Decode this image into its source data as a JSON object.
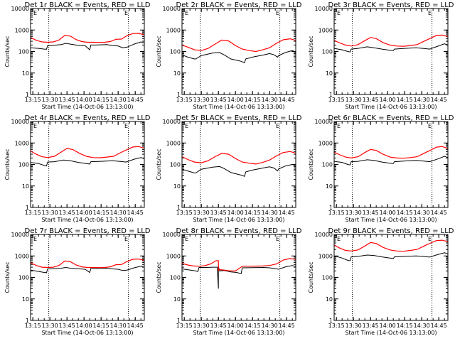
{
  "figure": {
    "x_tick_labels": [
      "13:15",
      "13:30",
      "13:45",
      "14:00",
      "14:15",
      "14:30",
      "14:45"
    ],
    "y_tick_labels": [
      "1",
      "10",
      "100",
      "1000",
      "10000"
    ],
    "ylabel": "Counts/sec",
    "xlabel": "Start Time (14-Oct-06 13:13:00)",
    "markers": [
      "E",
      "E"
    ],
    "colors": {
      "events": "#000000",
      "lld": "#ff0000"
    }
  },
  "chart_data": [
    {
      "type": "line",
      "title": "Det 1r BLACK = Events, RED = LLD",
      "xlabel": "Start Time (14-Oct-06 13:13:00)",
      "ylabel": "Counts/sec",
      "x_range": [
        "13:13",
        "14:53"
      ],
      "y_scale": "log",
      "ylim": [
        1,
        10000
      ],
      "vlines": [
        "13:29",
        "14:39"
      ],
      "series": [
        {
          "name": "Events",
          "x": [
            "13:13",
            "13:20",
            "13:25",
            "13:27",
            "13:28",
            "13:31",
            "13:40",
            "13:44",
            "13:48",
            "13:56",
            "14:01",
            "14:05",
            "14:06",
            "14:10",
            "14:20",
            "14:25",
            "14:30",
            "14:34",
            "14:38",
            "14:44",
            "14:50",
            "14:53"
          ],
          "y": [
            150,
            140,
            130,
            128,
            190,
            190,
            210,
            240,
            220,
            190,
            185,
            120,
            200,
            200,
            210,
            190,
            180,
            150,
            160,
            220,
            280,
            250
          ]
        },
        {
          "name": "LLD",
          "x": [
            "13:13",
            "13:18",
            "13:23",
            "13:28",
            "13:33",
            "13:38",
            "13:43",
            "13:48",
            "13:53",
            "13:58",
            "14:03",
            "14:08",
            "14:13",
            "14:18",
            "14:23",
            "14:28",
            "14:33",
            "14:38",
            "14:43",
            "14:48",
            "14:53"
          ],
          "y": [
            450,
            330,
            280,
            270,
            280,
            340,
            560,
            520,
            360,
            290,
            270,
            270,
            265,
            270,
            290,
            370,
            380,
            560,
            680,
            700,
            600
          ]
        }
      ]
    },
    {
      "type": "line",
      "title": "Det 2r BLACK = Events, RED = LLD",
      "xlabel": "Start Time (14-Oct-06 13:13:00)",
      "ylabel": "Counts/sec",
      "x_range": [
        "13:13",
        "14:53"
      ],
      "y_scale": "log",
      "ylim": [
        1,
        10000
      ],
      "vlines": [
        "13:29",
        "14:39"
      ],
      "series": [
        {
          "name": "Events",
          "x": [
            "13:13",
            "13:18",
            "13:24",
            "13:25",
            "13:30",
            "13:40",
            "13:46",
            "13:50",
            "13:56",
            "14:05",
            "14:08",
            "14:09",
            "14:15",
            "14:25",
            "14:30",
            "14:34",
            "14:37",
            "14:38",
            "14:44",
            "14:50",
            "14:53"
          ],
          "y": [
            70,
            55,
            45,
            45,
            65,
            85,
            90,
            70,
            45,
            35,
            30,
            45,
            55,
            70,
            80,
            70,
            55,
            65,
            90,
            110,
            95
          ]
        },
        {
          "name": "LLD",
          "x": [
            "13:13",
            "13:18",
            "13:24",
            "13:30",
            "13:36",
            "13:42",
            "13:48",
            "13:54",
            "14:00",
            "14:06",
            "14:12",
            "14:18",
            "14:24",
            "14:30",
            "14:36",
            "14:42",
            "14:48",
            "14:53"
          ],
          "y": [
            200,
            160,
            120,
            110,
            140,
            220,
            340,
            310,
            190,
            130,
            110,
            100,
            120,
            150,
            240,
            350,
            390,
            330
          ]
        }
      ]
    },
    {
      "type": "line",
      "title": "Det 3r BLACK = Events, RED = LLD",
      "xlabel": "Start Time (14-Oct-06 13:13:00)",
      "ylabel": "Counts/sec",
      "x_range": [
        "13:13",
        "14:53"
      ],
      "y_scale": "log",
      "ylim": [
        1,
        10000
      ],
      "vlines": [
        "13:29",
        "14:39"
      ],
      "series": [
        {
          "name": "Events",
          "x": [
            "13:13",
            "13:20",
            "13:25",
            "13:27",
            "13:28",
            "13:34",
            "13:42",
            "13:48",
            "13:55",
            "14:02",
            "14:05",
            "14:06",
            "14:15",
            "14:25",
            "14:31",
            "14:37",
            "14:44",
            "14:50",
            "14:53"
          ],
          "y": [
            140,
            120,
            100,
            95,
            130,
            140,
            165,
            150,
            130,
            115,
            110,
            130,
            140,
            150,
            140,
            130,
            175,
            230,
            200
          ]
        },
        {
          "name": "LLD",
          "x": [
            "13:13",
            "13:18",
            "13:23",
            "13:28",
            "13:34",
            "13:40",
            "13:45",
            "13:50",
            "13:56",
            "14:02",
            "14:08",
            "14:14",
            "14:20",
            "14:26",
            "14:32",
            "14:38",
            "14:43",
            "14:48",
            "14:53"
          ],
          "y": [
            330,
            250,
            200,
            180,
            210,
            320,
            450,
            400,
            260,
            200,
            180,
            175,
            190,
            210,
            300,
            420,
            560,
            580,
            500
          ]
        }
      ]
    },
    {
      "type": "line",
      "title": "Det 4r BLACK = Events, RED = LLD",
      "xlabel": "Start Time (14-Oct-06 13:13:00)",
      "ylabel": "Counts/sec",
      "x_range": [
        "13:13",
        "14:53"
      ],
      "y_scale": "log",
      "ylim": [
        1,
        10000
      ],
      "vlines": [
        "13:29",
        "14:39"
      ],
      "series": [
        {
          "name": "Events",
          "x": [
            "13:13",
            "13:20",
            "13:25",
            "13:27",
            "13:28",
            "13:34",
            "13:42",
            "13:48",
            "13:55",
            "14:02",
            "14:05",
            "14:06",
            "14:15",
            "14:25",
            "14:31",
            "14:37",
            "14:44",
            "14:50",
            "14:53"
          ],
          "y": [
            125,
            110,
            90,
            85,
            130,
            135,
            160,
            150,
            125,
            110,
            105,
            135,
            140,
            150,
            140,
            130,
            175,
            210,
            185
          ]
        },
        {
          "name": "LLD",
          "x": [
            "13:13",
            "13:18",
            "13:23",
            "13:28",
            "13:34",
            "13:40",
            "13:45",
            "13:50",
            "13:56",
            "14:02",
            "14:08",
            "14:14",
            "14:20",
            "14:26",
            "14:32",
            "14:38",
            "14:43",
            "14:48",
            "14:53"
          ],
          "y": [
            420,
            300,
            230,
            210,
            240,
            380,
            560,
            500,
            330,
            240,
            210,
            205,
            220,
            240,
            350,
            500,
            650,
            680,
            580
          ]
        }
      ]
    },
    {
      "type": "line",
      "title": "Det 5r BLACK = Events, RED = LLD",
      "xlabel": "Start Time (14-Oct-06 13:13:00)",
      "ylabel": "Counts/sec",
      "x_range": [
        "13:13",
        "14:53"
      ],
      "y_scale": "log",
      "ylim": [
        1,
        10000
      ],
      "vlines": [
        "13:29",
        "14:39"
      ],
      "series": [
        {
          "name": "Events",
          "x": [
            "13:13",
            "13:18",
            "13:24",
            "13:25",
            "13:30",
            "13:40",
            "13:46",
            "13:50",
            "13:56",
            "14:05",
            "14:08",
            "14:09",
            "14:15",
            "14:25",
            "14:30",
            "14:34",
            "14:37",
            "14:38",
            "14:44",
            "14:50",
            "14:53"
          ],
          "y": [
            60,
            50,
            40,
            40,
            60,
            75,
            80,
            65,
            42,
            32,
            28,
            45,
            55,
            70,
            78,
            68,
            50,
            62,
            85,
            100,
            88
          ]
        },
        {
          "name": "LLD",
          "x": [
            "13:13",
            "13:18",
            "13:24",
            "13:30",
            "13:36",
            "13:42",
            "13:48",
            "13:54",
            "14:00",
            "14:06",
            "14:12",
            "14:18",
            "14:24",
            "14:30",
            "14:36",
            "14:42",
            "14:48",
            "14:53"
          ],
          "y": [
            230,
            170,
            130,
            120,
            150,
            230,
            330,
            300,
            190,
            130,
            115,
            105,
            125,
            160,
            250,
            360,
            400,
            340
          ]
        }
      ]
    },
    {
      "type": "line",
      "title": "Det 6r BLACK = Events, RED = LLD",
      "xlabel": "Start Time (14-Oct-06 13:13:00)",
      "ylabel": "Counts/sec",
      "x_range": [
        "13:13",
        "14:53"
      ],
      "y_scale": "log",
      "ylim": [
        1,
        10000
      ],
      "vlines": [
        "13:29",
        "14:39"
      ],
      "series": [
        {
          "name": "Events",
          "x": [
            "13:13",
            "13:20",
            "13:25",
            "13:27",
            "13:28",
            "13:34",
            "13:42",
            "13:48",
            "13:55",
            "14:02",
            "14:05",
            "14:06",
            "14:15",
            "14:25",
            "14:31",
            "14:37",
            "14:44",
            "14:50",
            "14:53"
          ],
          "y": [
            140,
            125,
            100,
            95,
            135,
            140,
            165,
            155,
            130,
            115,
            110,
            135,
            145,
            155,
            145,
            135,
            180,
            240,
            210
          ]
        },
        {
          "name": "LLD",
          "x": [
            "13:13",
            "13:18",
            "13:23",
            "13:28",
            "13:34",
            "13:40",
            "13:45",
            "13:50",
            "13:56",
            "14:02",
            "14:08",
            "14:14",
            "14:20",
            "14:26",
            "14:32",
            "14:38",
            "14:43",
            "14:48",
            "14:53"
          ],
          "y": [
            380,
            280,
            220,
            200,
            230,
            360,
            500,
            450,
            300,
            220,
            200,
            195,
            210,
            230,
            330,
            470,
            640,
            680,
            560
          ]
        }
      ]
    },
    {
      "type": "line",
      "title": "Det 7r BLACK = Events, RED = LLD",
      "xlabel": "Start Time (14-Oct-06 13:13:00)",
      "ylabel": "Counts/sec",
      "x_range": [
        "13:13",
        "14:53"
      ],
      "y_scale": "log",
      "ylim": [
        1,
        10000
      ],
      "vlines": [
        "13:29",
        "14:39"
      ],
      "series": [
        {
          "name": "Events",
          "x": [
            "13:13",
            "13:20",
            "13:25",
            "13:27",
            "13:28",
            "13:31",
            "13:40",
            "13:44",
            "13:48",
            "13:56",
            "14:01",
            "14:05",
            "14:06",
            "14:10",
            "14:20",
            "14:25",
            "14:30",
            "14:34",
            "14:38",
            "14:44",
            "14:50",
            "14:53"
          ],
          "y": [
            220,
            190,
            170,
            165,
            250,
            250,
            270,
            290,
            270,
            250,
            240,
            170,
            260,
            260,
            270,
            250,
            240,
            210,
            220,
            280,
            330,
            300
          ]
        },
        {
          "name": "LLD",
          "x": [
            "13:13",
            "13:18",
            "13:23",
            "13:28",
            "13:33",
            "13:38",
            "13:43",
            "13:48",
            "13:53",
            "13:58",
            "14:03",
            "14:08",
            "14:13",
            "14:18",
            "14:23",
            "14:28",
            "14:33",
            "14:38",
            "14:43",
            "14:48",
            "14:53"
          ],
          "y": [
            480,
            360,
            300,
            290,
            300,
            360,
            580,
            540,
            380,
            310,
            290,
            290,
            285,
            290,
            310,
            390,
            400,
            560,
            700,
            720,
            620
          ]
        }
      ]
    },
    {
      "type": "line",
      "title": "Det 8r BLACK = Events, RED = LLD",
      "xlabel": "Start Time (14-Oct-06 13:13:00)",
      "ylabel": "Counts/sec",
      "x_range": [
        "13:13",
        "14:53"
      ],
      "y_scale": "log",
      "ylim": [
        1,
        10000
      ],
      "vlines": [
        "13:29",
        "14:39"
      ],
      "series": [
        {
          "name": "Events",
          "x": [
            "13:13",
            "13:20",
            "13:25",
            "13:27",
            "13:28",
            "13:35",
            "13:40",
            "13:44",
            "13:45",
            "13:45",
            "13:46",
            "13:50",
            "13:56",
            "14:01",
            "14:05",
            "14:06",
            "14:15",
            "14:25",
            "14:30",
            "14:34",
            "14:38",
            "14:44",
            "14:50",
            "14:53"
          ],
          "y": [
            250,
            220,
            200,
            190,
            290,
            290,
            300,
            300,
            30,
            330,
            200,
            210,
            180,
            170,
            150,
            280,
            285,
            290,
            280,
            260,
            240,
            310,
            360,
            330
          ]
        },
        {
          "name": "LLD",
          "x": [
            "13:13",
            "13:18",
            "13:23",
            "13:28",
            "13:33",
            "13:38",
            "13:43",
            "13:45",
            "13:45",
            "13:46",
            "13:50",
            "13:55",
            "14:00",
            "14:06",
            "14:12",
            "14:18",
            "14:24",
            "14:30",
            "14:36",
            "14:42",
            "14:48",
            "14:53"
          ],
          "y": [
            450,
            380,
            340,
            330,
            350,
            420,
            600,
            600,
            210,
            230,
            220,
            200,
            200,
            330,
            330,
            335,
            340,
            360,
            420,
            640,
            760,
            680
          ]
        }
      ]
    },
    {
      "type": "line",
      "title": "Det 9r BLACK = Events, RED = LLD",
      "xlabel": "Start Time (14-Oct-06 13:13:00)",
      "ylabel": "Counts/sec",
      "x_range": [
        "13:13",
        "14:53"
      ],
      "y_scale": "log",
      "ylim": [
        1,
        10000
      ],
      "vlines": [
        "13:29",
        "14:39"
      ],
      "series": [
        {
          "name": "Events",
          "x": [
            "13:13",
            "13:20",
            "13:25",
            "13:27",
            "13:28",
            "13:34",
            "13:42",
            "13:48",
            "13:55",
            "14:02",
            "14:05",
            "14:06",
            "14:15",
            "14:25",
            "14:31",
            "14:37",
            "14:44",
            "14:50",
            "14:53"
          ],
          "y": [
            1000,
            800,
            620,
            600,
            900,
            950,
            1100,
            1050,
            900,
            800,
            760,
            900,
            950,
            1000,
            950,
            880,
            1150,
            1400,
            1250
          ]
        },
        {
          "name": "LLD",
          "x": [
            "13:13",
            "13:18",
            "13:23",
            "13:28",
            "13:34",
            "13:40",
            "13:45",
            "13:50",
            "13:56",
            "14:02",
            "14:08",
            "14:14",
            "14:20",
            "14:26",
            "14:32",
            "14:38",
            "14:43",
            "14:48",
            "14:53"
          ],
          "y": [
            3200,
            2300,
            1800,
            1700,
            1900,
            2900,
            4200,
            3800,
            2500,
            1900,
            1700,
            1650,
            1800,
            2000,
            2900,
            4000,
            5200,
            5400,
            4600
          ]
        }
      ]
    }
  ]
}
